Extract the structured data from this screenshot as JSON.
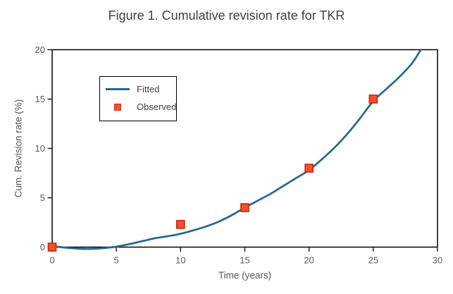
{
  "colors": {
    "fitted_line": "#23688b",
    "observed_fill": "#f4512c",
    "observed_stroke": "#cc2a0f",
    "axis": "#000000",
    "tick_text": "#595959",
    "title_text": "#404040",
    "background": "#ffffff"
  },
  "chart_data": {
    "type": "line",
    "title": "Figure 1. Cumulative revision rate for TKR",
    "xlabel": "Time (years)",
    "ylabel": "Cum. Revision rate (%)",
    "xlim": [
      0,
      30
    ],
    "ylim": [
      0,
      20
    ],
    "xticks": [
      0,
      5,
      10,
      15,
      20,
      25,
      30
    ],
    "yticks": [
      0,
      5,
      10,
      15,
      20
    ],
    "grid": false,
    "legend_position": "inside upper-left",
    "series": [
      {
        "name": "Fitted",
        "type": "line",
        "color": "#23688b",
        "points": [
          [
            0,
            0.1
          ],
          [
            1,
            -0.05
          ],
          [
            2,
            -0.15
          ],
          [
            3,
            -0.18
          ],
          [
            4,
            -0.1
          ],
          [
            5,
            0.05
          ],
          [
            6,
            0.3
          ],
          [
            7,
            0.6
          ],
          [
            8,
            0.9
          ],
          [
            9,
            1.1
          ],
          [
            10,
            1.35
          ],
          [
            11,
            1.7
          ],
          [
            12,
            2.1
          ],
          [
            13,
            2.6
          ],
          [
            14,
            3.25
          ],
          [
            15,
            4.0
          ],
          [
            16,
            4.7
          ],
          [
            17,
            5.4
          ],
          [
            18,
            6.2
          ],
          [
            19,
            7.0
          ],
          [
            20,
            7.8
          ],
          [
            21,
            8.9
          ],
          [
            22,
            10.1
          ],
          [
            23,
            11.5
          ],
          [
            24,
            13.1
          ],
          [
            25,
            14.8
          ],
          [
            26,
            16.0
          ],
          [
            27,
            17.2
          ],
          [
            28,
            18.6
          ],
          [
            28.7,
            20
          ]
        ]
      },
      {
        "name": "Observed",
        "type": "scatter",
        "marker": "square",
        "fill": "#f4512c",
        "stroke": "#cc2a0f",
        "points": [
          [
            0,
            0
          ],
          [
            10,
            2.3
          ],
          [
            15,
            4
          ],
          [
            20,
            8
          ],
          [
            25,
            15
          ]
        ]
      }
    ]
  }
}
